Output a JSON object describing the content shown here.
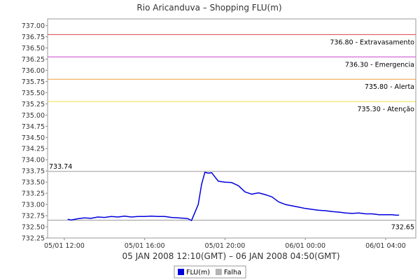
{
  "chart_data": {
    "type": "line",
    "title": "Rio Aricanduva – Shopping FLU(m)",
    "xlabel": "05 JAN 2008 12:10(GMT) – 06 JAN 2008 04:50(GMT)",
    "ylabel": "",
    "x_range": [
      "05/01 11:10",
      "06/01 05:30"
    ],
    "ylim": [
      732.25,
      737.15
    ],
    "y_ticks": [
      "737.00",
      "736.75",
      "736.50",
      "736.25",
      "736.00",
      "735.75",
      "735.50",
      "735.25",
      "735.00",
      "734.75",
      "734.50",
      "734.25",
      "734.00",
      "733.75",
      "733.50",
      "733.25",
      "733.00",
      "732.75",
      "732.50",
      "732.25"
    ],
    "x_ticks": [
      "05/01 12:00",
      "05/01 16:00",
      "05/01 20:00",
      "06/01 00:00",
      "06/01 04:00"
    ],
    "grid": false,
    "thresholds": [
      {
        "value": 736.8,
        "label": "736.80 - Extravasamento",
        "color": "#e04040"
      },
      {
        "value": 736.3,
        "label": "736.30 - Emergencia",
        "color": "#cc44cc"
      },
      {
        "value": 735.8,
        "label": "735.80 - Alerta",
        "color": "#f0a040"
      },
      {
        "value": 735.3,
        "label": "735.30 - Atenção",
        "color": "#f0e040"
      }
    ],
    "max_line": {
      "value": 733.74,
      "label": "733.74",
      "color": "#999999"
    },
    "min_line": {
      "value": 732.65,
      "label": "732.65",
      "color": "#999999"
    },
    "series": [
      {
        "name": "FLU(m)",
        "color": "#0000dd",
        "x": [
          "05/01 12:10",
          "05/01 12:20",
          "05/01 12:40",
          "05/01 13:00",
          "05/01 13:20",
          "05/01 13:40",
          "05/01 14:00",
          "05/01 14:20",
          "05/01 14:40",
          "05/01 15:00",
          "05/01 15:20",
          "05/01 15:40",
          "05/01 16:00",
          "05/01 16:20",
          "05/01 16:40",
          "05/01 17:00",
          "05/01 17:20",
          "05/01 17:40",
          "05/01 18:00",
          "05/01 18:10",
          "05/01 18:20",
          "05/01 18:40",
          "05/01 18:50",
          "05/01 19:00",
          "05/01 19:10",
          "05/01 19:20",
          "05/01 19:40",
          "05/01 20:00",
          "05/01 20:20",
          "05/01 20:40",
          "05/01 21:00",
          "05/01 21:20",
          "05/01 21:40",
          "05/01 22:00",
          "05/01 22:20",
          "05/01 22:40",
          "05/01 23:00",
          "05/01 23:20",
          "05/01 23:40",
          "06/01 00:00",
          "06/01 00:20",
          "06/01 00:40",
          "06/01 01:00",
          "06/01 01:20",
          "06/01 01:40",
          "06/01 02:00",
          "06/01 02:20",
          "06/01 02:40",
          "06/01 03:00",
          "06/01 03:20",
          "06/01 03:40",
          "06/01 04:00",
          "06/01 04:20",
          "06/01 04:30",
          "06/01 04:40"
        ],
        "values": [
          732.67,
          732.65,
          732.68,
          732.7,
          732.69,
          732.72,
          732.71,
          732.73,
          732.72,
          732.74,
          732.72,
          732.73,
          732.73,
          732.74,
          732.73,
          732.73,
          732.71,
          732.7,
          732.69,
          732.68,
          732.64,
          733.0,
          733.45,
          733.72,
          733.7,
          733.71,
          733.52,
          733.5,
          733.49,
          733.42,
          733.28,
          733.23,
          733.26,
          733.22,
          733.17,
          733.06,
          733.0,
          732.97,
          732.94,
          732.91,
          732.89,
          732.87,
          732.86,
          732.84,
          732.83,
          732.81,
          732.8,
          732.81,
          732.79,
          732.79,
          732.77,
          732.77,
          732.77,
          732.76,
          732.76
        ]
      },
      {
        "name": "Falha",
        "color": "#b4b4b4",
        "x": [],
        "values": []
      }
    ],
    "legend": {
      "placement": "bottom-center",
      "entries": [
        "FLU(m)",
        "Falha"
      ]
    }
  }
}
